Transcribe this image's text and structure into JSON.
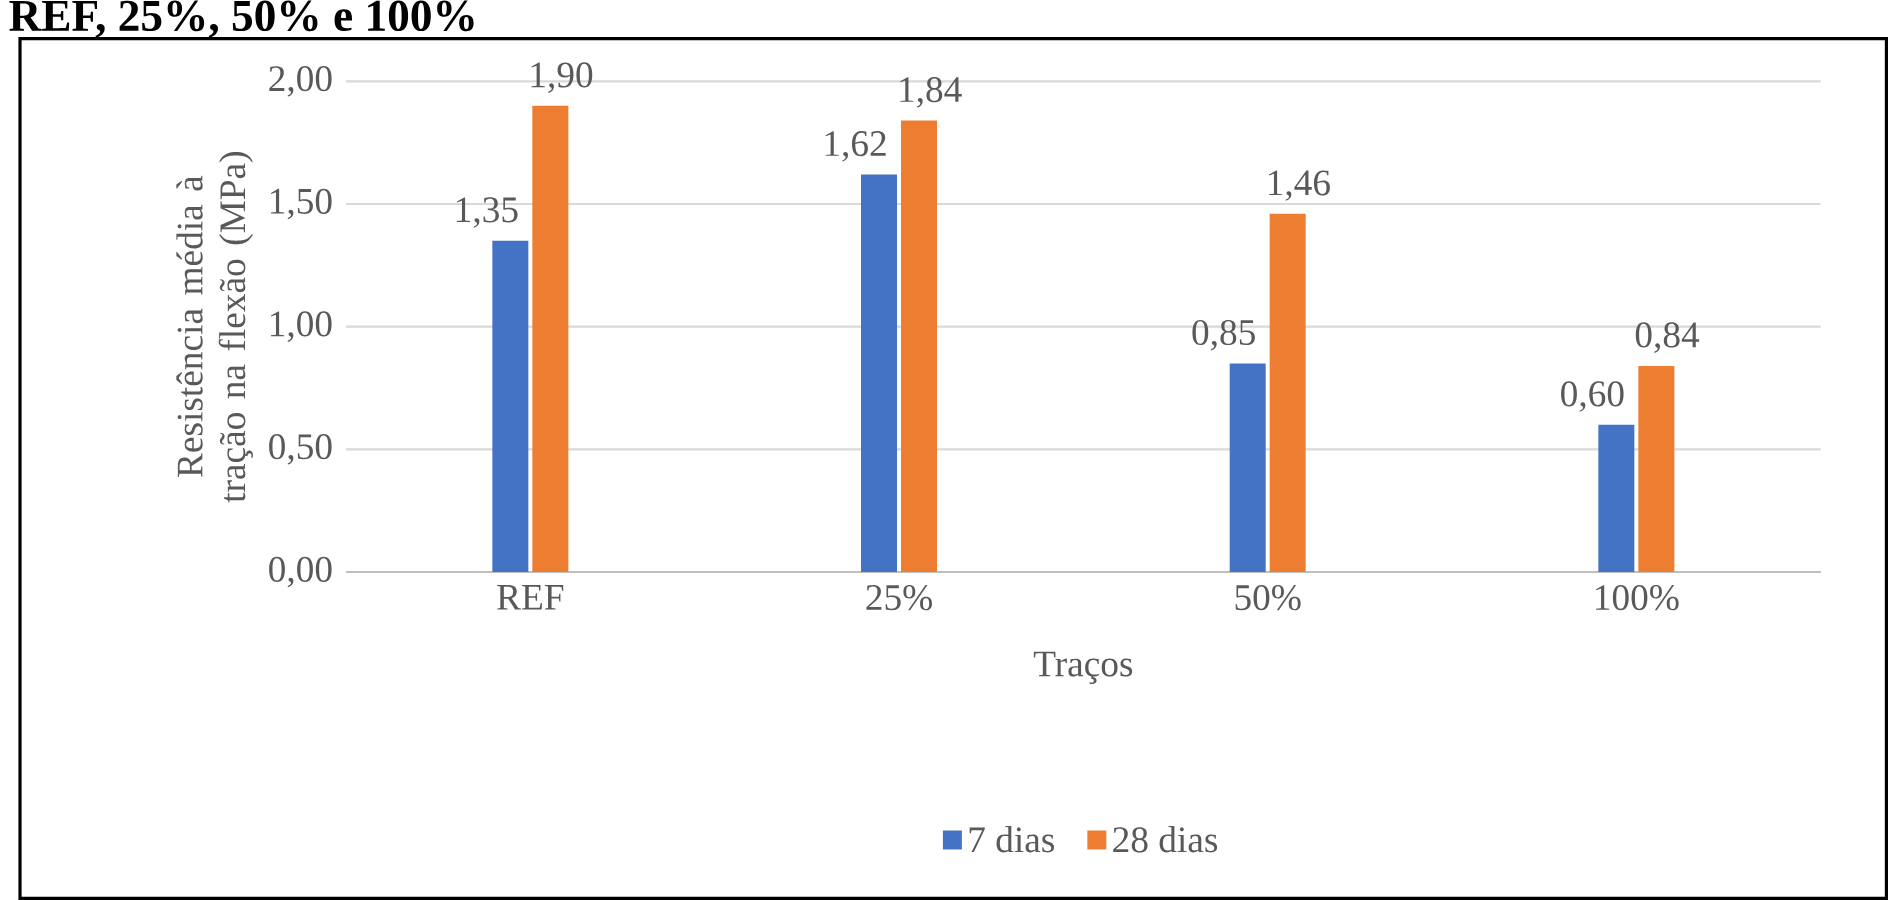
{
  "chart_data": {
    "type": "bar",
    "title": "REF, 25%, 50% e 100%",
    "xlabel": "Traços",
    "ylabel": "Resistência média à tração na flexão (MPa)",
    "categories": [
      "REF",
      "25%",
      "50%",
      "100%"
    ],
    "series": [
      {
        "name": "7 dias",
        "color": "#4472c4",
        "values": [
          1.35,
          1.62,
          0.85,
          0.6
        ],
        "value_labels": [
          "1,35",
          "1,62",
          "0,85",
          "0,60"
        ]
      },
      {
        "name": "28 dias",
        "color": "#ed7d31",
        "values": [
          1.9,
          1.84,
          1.46,
          0.84
        ],
        "value_labels": [
          "1,90",
          "1,84",
          "1,46",
          "0,84"
        ]
      }
    ],
    "ylim": [
      0,
      2
    ],
    "yticks": [
      {
        "value": 0,
        "label": "0,00"
      },
      {
        "value": 0.5,
        "label": "0,50"
      },
      {
        "value": 1,
        "label": "1,00"
      },
      {
        "value": 1.5,
        "label": "1,50"
      },
      {
        "value": 2,
        "label": "2,00"
      }
    ],
    "grid": "y",
    "legend": "bottom"
  }
}
